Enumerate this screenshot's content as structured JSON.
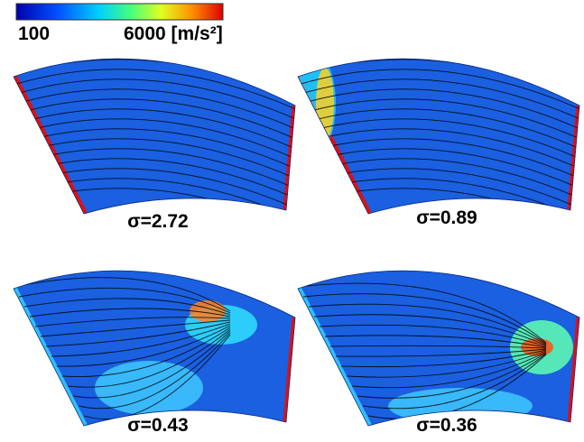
{
  "colorbar": {
    "min_label": "100",
    "max_label": "6000 [m/s²]"
  },
  "panels": [
    {
      "label": "σ=2.72"
    },
    {
      "label": "σ=0.89"
    },
    {
      "label": "σ=0.43"
    },
    {
      "label": "σ=0.36"
    }
  ]
}
